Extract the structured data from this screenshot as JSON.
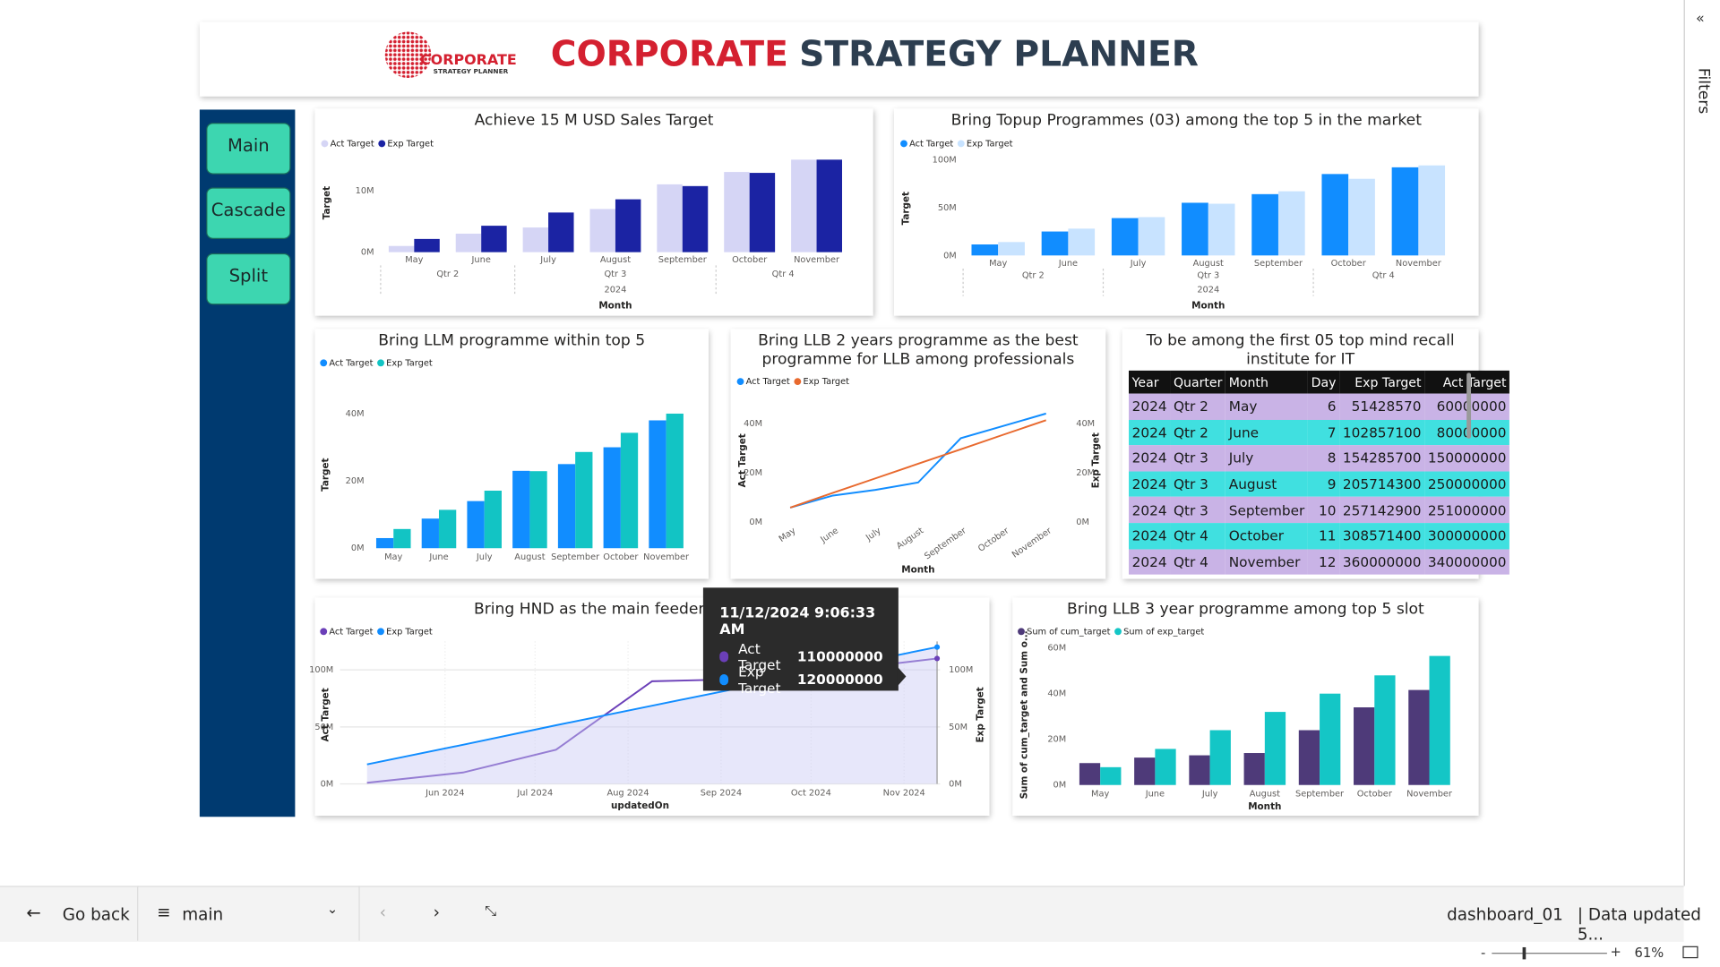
{
  "header": {
    "logo_main": "CORPORATE",
    "logo_sub": "STRATEGY PLANNER",
    "title_highlight": "CORPORATE",
    "title_rest": "STRATEGY PLANNER"
  },
  "nav": [
    "Main",
    "Cascade",
    "Split"
  ],
  "filters_pane": {
    "label": "Filters"
  },
  "chart_data": [
    {
      "type": "bar",
      "title": "Achieve 15 M USD Sales Target",
      "y_label": "Target",
      "x_label": "Month",
      "x_groups": [
        "Qtr 2",
        "Qtr 3",
        "Qtr 4"
      ],
      "x_year": "2024",
      "categories": [
        "May",
        "June",
        "July",
        "August",
        "September",
        "October",
        "November"
      ],
      "series": [
        {
          "name": "Act Target",
          "color": "#d5d5f5",
          "values": [
            1000000,
            3000000,
            4000000,
            7000000,
            11000000,
            13000000,
            15000000
          ]
        },
        {
          "name": "Exp Target",
          "color": "#1b23a3",
          "values": [
            2142857,
            4285714,
            6428571,
            8571429,
            10714286,
            12857143,
            15000000
          ]
        }
      ],
      "ylim": [
        0,
        16000000
      ],
      "yticks": [
        {
          "value": 0,
          "label": "0M"
        },
        {
          "value": 10000000,
          "label": "10M"
        }
      ]
    },
    {
      "type": "bar",
      "title": "Bring Topup Programmes (03) among the top 5 in the market",
      "y_label": "Target",
      "x_label": "Month",
      "x_groups": [
        "Qtr 2",
        "Qtr 3",
        "Qtr 4"
      ],
      "x_year": "2024",
      "categories": [
        "May",
        "June",
        "July",
        "August",
        "September",
        "October",
        "November"
      ],
      "series": [
        {
          "name": "Act Target",
          "color": "#118dff",
          "values": [
            11500000,
            25000000,
            39000000,
            55000000,
            64000000,
            85000000,
            92000000
          ]
        },
        {
          "name": "Exp Target",
          "color": "#c8e3ff",
          "values": [
            14000000,
            28000000,
            40000000,
            54000000,
            67000000,
            80000000,
            94000000
          ]
        }
      ],
      "ylim": [
        0,
        103000000
      ],
      "yticks": [
        {
          "value": 0,
          "label": "0M"
        },
        {
          "value": 50000000,
          "label": "50M"
        },
        {
          "value": 100000000,
          "label": "100M"
        }
      ]
    },
    {
      "type": "bar",
      "title": "Bring LLM programme within top 5",
      "y_label": "Target",
      "categories": [
        "May",
        "June",
        "July",
        "August",
        "September",
        "October",
        "November"
      ],
      "series": [
        {
          "name": "Act Target",
          "color": "#118dff",
          "values": [
            3000000,
            8800000,
            14000000,
            23000000,
            25000000,
            30000000,
            38000000
          ]
        },
        {
          "name": "Exp Target",
          "color": "#12c4c4",
          "values": [
            5700000,
            11400000,
            17100000,
            22900000,
            28600000,
            34300000,
            40000000
          ]
        }
      ],
      "ylim": [
        0,
        44000000
      ],
      "yticks": [
        {
          "value": 0,
          "label": "0M"
        },
        {
          "value": 20000000,
          "label": "20M"
        },
        {
          "value": 40000000,
          "label": "40M"
        }
      ]
    },
    {
      "type": "line",
      "title": "Bring LLB 2 years programme as the best programme for LLB among professionals",
      "y_label": "Act Target",
      "y2_label": "Exp Target",
      "x_label": "Month",
      "categories": [
        "May",
        "June",
        "July",
        "August",
        "September",
        "October",
        "November"
      ],
      "series": [
        {
          "name": "Act Target",
          "color": "#118dff",
          "values": [
            5800000,
            10700000,
            13000000,
            16000000,
            34000000,
            39000000,
            44000000
          ]
        },
        {
          "name": "Exp Target",
          "color": "#e8692e",
          "axis": "y2",
          "values": [
            5800000,
            11800000,
            17700000,
            23600000,
            29500000,
            35400000,
            41300000
          ]
        }
      ],
      "ylim": [
        0,
        45000000
      ],
      "yticks": [
        {
          "value": 0,
          "label": "0M"
        },
        {
          "value": 20000000,
          "label": "20M"
        },
        {
          "value": 40000000,
          "label": "40M"
        }
      ],
      "y2lim": [
        0,
        45000000
      ],
      "y2ticks": [
        {
          "value": 0,
          "label": "0M"
        },
        {
          "value": 20000000,
          "label": "20M"
        },
        {
          "value": 40000000,
          "label": "40M"
        }
      ]
    },
    {
      "type": "area",
      "title": "Bring HND as the main feeder t",
      "y_label": "Act Target",
      "y2_label": "Exp Target",
      "x_label": "updatedOn",
      "grid": true,
      "x": [
        "2024-05-06",
        "2024-06-07",
        "2024-07-08",
        "2024-08-09",
        "2024-09-10",
        "2024-10-11",
        "2024-11-12"
      ],
      "series": [
        {
          "name": "Act Target",
          "color": "#6b3fb8",
          "values": [
            1000000,
            10000000,
            30000000,
            90000000,
            92000000,
            100000000,
            110000000
          ]
        },
        {
          "name": "Exp Target",
          "color": "#118dff",
          "axis": "y2",
          "values": [
            17142857,
            34285714,
            51428571,
            68571429,
            85714286,
            102857143,
            120000000
          ]
        }
      ],
      "xlim": [
        "2024-04-27",
        "2024-11-13"
      ],
      "xticks": [
        {
          "value": "2024-06-01",
          "label": "Jun 2024"
        },
        {
          "value": "2024-07-01",
          "label": "Jul 2024"
        },
        {
          "value": "2024-08-01",
          "label": "Aug 2024"
        },
        {
          "value": "2024-09-01",
          "label": "Sep 2024"
        },
        {
          "value": "2024-10-01",
          "label": "Oct 2024"
        },
        {
          "value": "2024-11-01",
          "label": "Nov 2024"
        }
      ],
      "ylim": [
        0,
        125000000
      ],
      "yticks": [
        {
          "value": 0,
          "label": "0M"
        },
        {
          "value": 50000000,
          "label": "50M"
        },
        {
          "value": 100000000,
          "label": "100M"
        }
      ],
      "y2lim": [
        0,
        125000000
      ],
      "y2ticks": [
        {
          "value": 0,
          "label": "0M"
        },
        {
          "value": 50000000,
          "label": "50M"
        },
        {
          "value": 100000000,
          "label": "100M"
        }
      ]
    },
    {
      "type": "bar",
      "title": "Bring LLB 3 year programme among top 5 slot",
      "y_label": "Sum of cum_target and Sum o...",
      "x_label": "Month",
      "categories": [
        "May",
        "June",
        "July",
        "August",
        "September",
        "October",
        "November"
      ],
      "series": [
        {
          "name": "Sum of cum_target",
          "color": "#4e3a79",
          "values": [
            9600000,
            12000000,
            13000000,
            14000000,
            24000000,
            34000000,
            41600000
          ]
        },
        {
          "name": "Sum of exp_target",
          "color": "#14c6c6",
          "values": [
            7800000,
            15800000,
            24000000,
            32000000,
            40000000,
            48000000,
            56500000
          ]
        }
      ],
      "ylim": [
        0,
        60000000
      ],
      "yticks": [
        {
          "value": 0,
          "label": "0M"
        },
        {
          "value": 20000000,
          "label": "20M"
        },
        {
          "value": 40000000,
          "label": "40M"
        },
        {
          "value": 60000000,
          "label": "60M"
        }
      ]
    }
  ],
  "table": {
    "title": "To be among the first 05 top mind recall institute for IT",
    "columns": [
      "Year",
      "Quarter",
      "Month",
      "Day",
      "Exp Target",
      "Act Target"
    ],
    "rows": [
      [
        2024,
        "Qtr 2",
        "May",
        6,
        51428570,
        60000000
      ],
      [
        2024,
        "Qtr 2",
        "June",
        7,
        102857100,
        80000000
      ],
      [
        2024,
        "Qtr 3",
        "July",
        8,
        154285700,
        150000000
      ],
      [
        2024,
        "Qtr 3",
        "August",
        9,
        205714300,
        250000000
      ],
      [
        2024,
        "Qtr 3",
        "September",
        10,
        257142900,
        251000000
      ],
      [
        2024,
        "Qtr 4",
        "October",
        11,
        308571400,
        300000000
      ],
      [
        2024,
        "Qtr 4",
        "November",
        12,
        360000000,
        340000000
      ]
    ]
  },
  "tooltip": {
    "title": "11/12/2024 9:06:33 AM",
    "rows": [
      {
        "name": "Act Target",
        "value": 110000000
      },
      {
        "name": "Exp Target",
        "value": 120000000
      }
    ]
  },
  "footer": {
    "back": "Go back",
    "page": "main",
    "report": "dashboard_01",
    "status": "| Data updated 5...",
    "zoom": "61%"
  }
}
